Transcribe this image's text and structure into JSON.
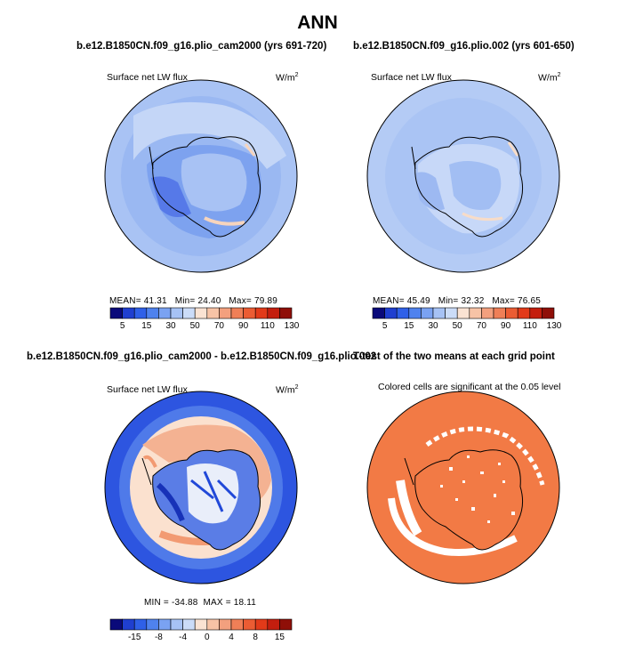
{
  "title": "ANN",
  "panels": {
    "top_left": {
      "case_title": "b.e12.B1850CN.f09_g16.plio_cam2000 (yrs 691-720)",
      "variable": "Surface net LW flux",
      "units_base": "W/m",
      "units_exp": "2",
      "stats": {
        "mean_label": "MEAN=",
        "mean": "41.31",
        "min_label": "Min=",
        "min": "24.40",
        "max_label": "Max=",
        "max": "79.89"
      }
    },
    "top_right": {
      "case_title": "b.e12.B1850CN.f09_g16.plio.002 (yrs 601-650)",
      "variable": "Surface net LW flux",
      "units_base": "W/m",
      "units_exp": "2",
      "stats": {
        "mean_label": "MEAN=",
        "mean": "45.49",
        "min_label": "Min=",
        "min": "32.32",
        "max_label": "Max=",
        "max": "76.65"
      }
    },
    "bottom_left": {
      "case_title": "b.e12.B1850CN.f09_g16.plio_cam2000 - b.e12.B1850CN.f09_g16.plio.002",
      "variable": "Surface net LW flux",
      "units_base": "W/m",
      "units_exp": "2",
      "stats": {
        "min_label": "MIN =",
        "min": "-34.88",
        "max_label": "MAX =",
        "max": "18.11"
      }
    },
    "bottom_right": {
      "case_title": "T-test of the two means at each grid point",
      "subtitle": "Colored cells are significant at the 0.05 level"
    }
  },
  "chart_data": [
    {
      "type": "heatmap",
      "map": "south-polar-stereographic",
      "colorbar": {
        "labels": [
          "5",
          "15",
          "30",
          "50",
          "70",
          "90",
          "110",
          "130"
        ],
        "colors": [
          "#0a0a7a",
          "#1f3fd0",
          "#2f60e8",
          "#4f82ee",
          "#7aa2f2",
          "#a6c2f5",
          "#cbdcf8",
          "#fae3d3",
          "#f7c3a6",
          "#f3a07e",
          "#ef7f57",
          "#eb5c33",
          "#e23a19",
          "#c41e0e",
          "#8f0f08"
        ]
      }
    },
    {
      "type": "heatmap",
      "map": "south-polar-stereographic",
      "colorbar": {
        "labels": [
          "5",
          "15",
          "30",
          "50",
          "70",
          "90",
          "110",
          "130"
        ],
        "colors": [
          "#0a0a7a",
          "#1f3fd0",
          "#2f60e8",
          "#4f82ee",
          "#7aa2f2",
          "#a6c2f5",
          "#cbdcf8",
          "#fae3d3",
          "#f7c3a6",
          "#f3a07e",
          "#ef7f57",
          "#eb5c33",
          "#e23a19",
          "#c41e0e",
          "#8f0f08"
        ]
      }
    },
    {
      "type": "heatmap",
      "map": "south-polar-stereographic",
      "colorbar": {
        "labels": [
          "-15",
          "-8",
          "-4",
          "0",
          "4",
          "8",
          "15"
        ],
        "colors": [
          "#0a0a7a",
          "#1f3fd0",
          "#2f60e8",
          "#4f82ee",
          "#7aa2f2",
          "#a6c2f5",
          "#cbdcf8",
          "#fae3d3",
          "#f7c3a6",
          "#f3a07e",
          "#ef7f57",
          "#eb5c33",
          "#e23a19",
          "#c41e0e",
          "#8f0f08"
        ]
      }
    },
    {
      "type": "heatmap",
      "map": "south-polar-stereographic",
      "significant_color": "#f27a45"
    }
  ]
}
